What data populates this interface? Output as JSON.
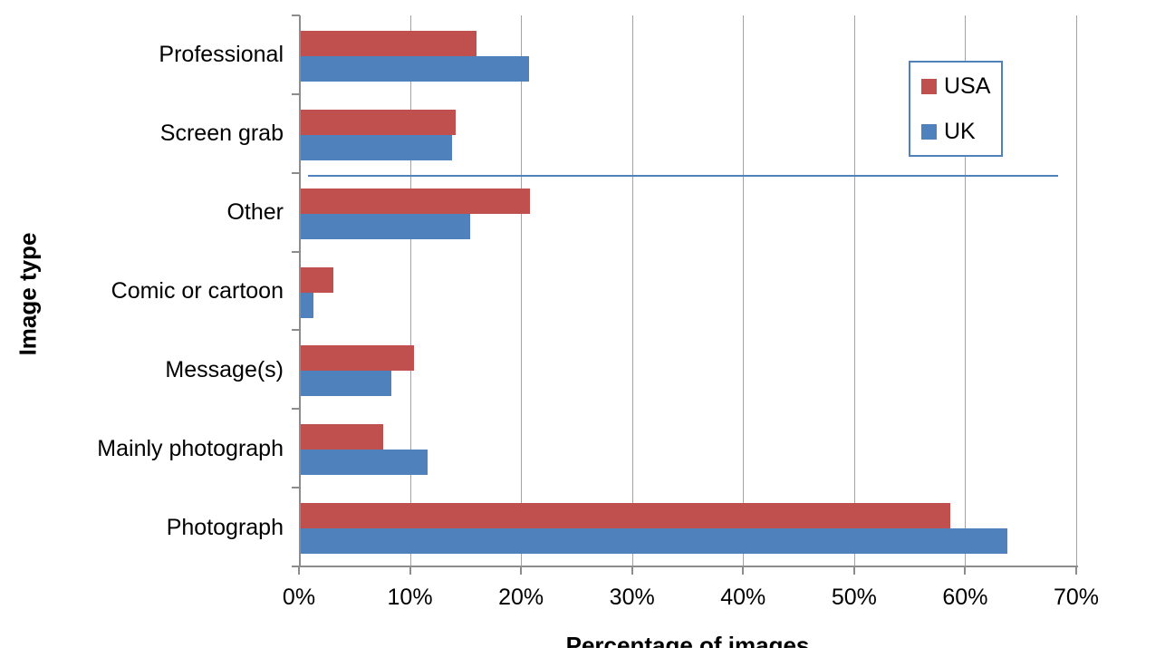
{
  "chart_data": {
    "type": "bar",
    "orientation": "horizontal",
    "title": "",
    "xlabel": "Percentage of images",
    "ylabel": "Image type",
    "categories": [
      "Professional",
      "Screen grab",
      "Other",
      "Comic or cartoon",
      "Message(s)",
      "Mainly photograph",
      "Photograph"
    ],
    "series": [
      {
        "name": "USA",
        "color": "#C0504D",
        "values": [
          16.0,
          14.1,
          20.8,
          3.1,
          10.4,
          7.6,
          58.7
        ]
      },
      {
        "name": "UK",
        "color": "#4F81BD",
        "values": [
          20.7,
          13.8,
          15.4,
          1.3,
          8.3,
          11.6,
          63.8
        ]
      }
    ],
    "xlim": [
      0,
      70
    ],
    "x_tick_labels": [
      "0%",
      "10%",
      "20%",
      "30%",
      "40%",
      "50%",
      "60%",
      "70%"
    ],
    "grid": true,
    "legend": {
      "position": "top-right-inside",
      "entries": [
        "USA",
        "UK"
      ],
      "border_color": "#4F81BD"
    },
    "stray_line": {
      "description": "thin horizontal blue line at the boundary between the Screen grab and Other rows",
      "between_categories": [
        "Screen grab",
        "Other"
      ],
      "x_start_pct": 0.8,
      "x_end_pct": 68.4,
      "color": "#4F81BD"
    }
  },
  "colors": {
    "background": "#FFFFFF",
    "axis": "#8C8C8C",
    "gridline": "#A3A3A3",
    "text": "#000000",
    "series_usa": "#C0504D",
    "series_uk": "#4F81BD"
  }
}
